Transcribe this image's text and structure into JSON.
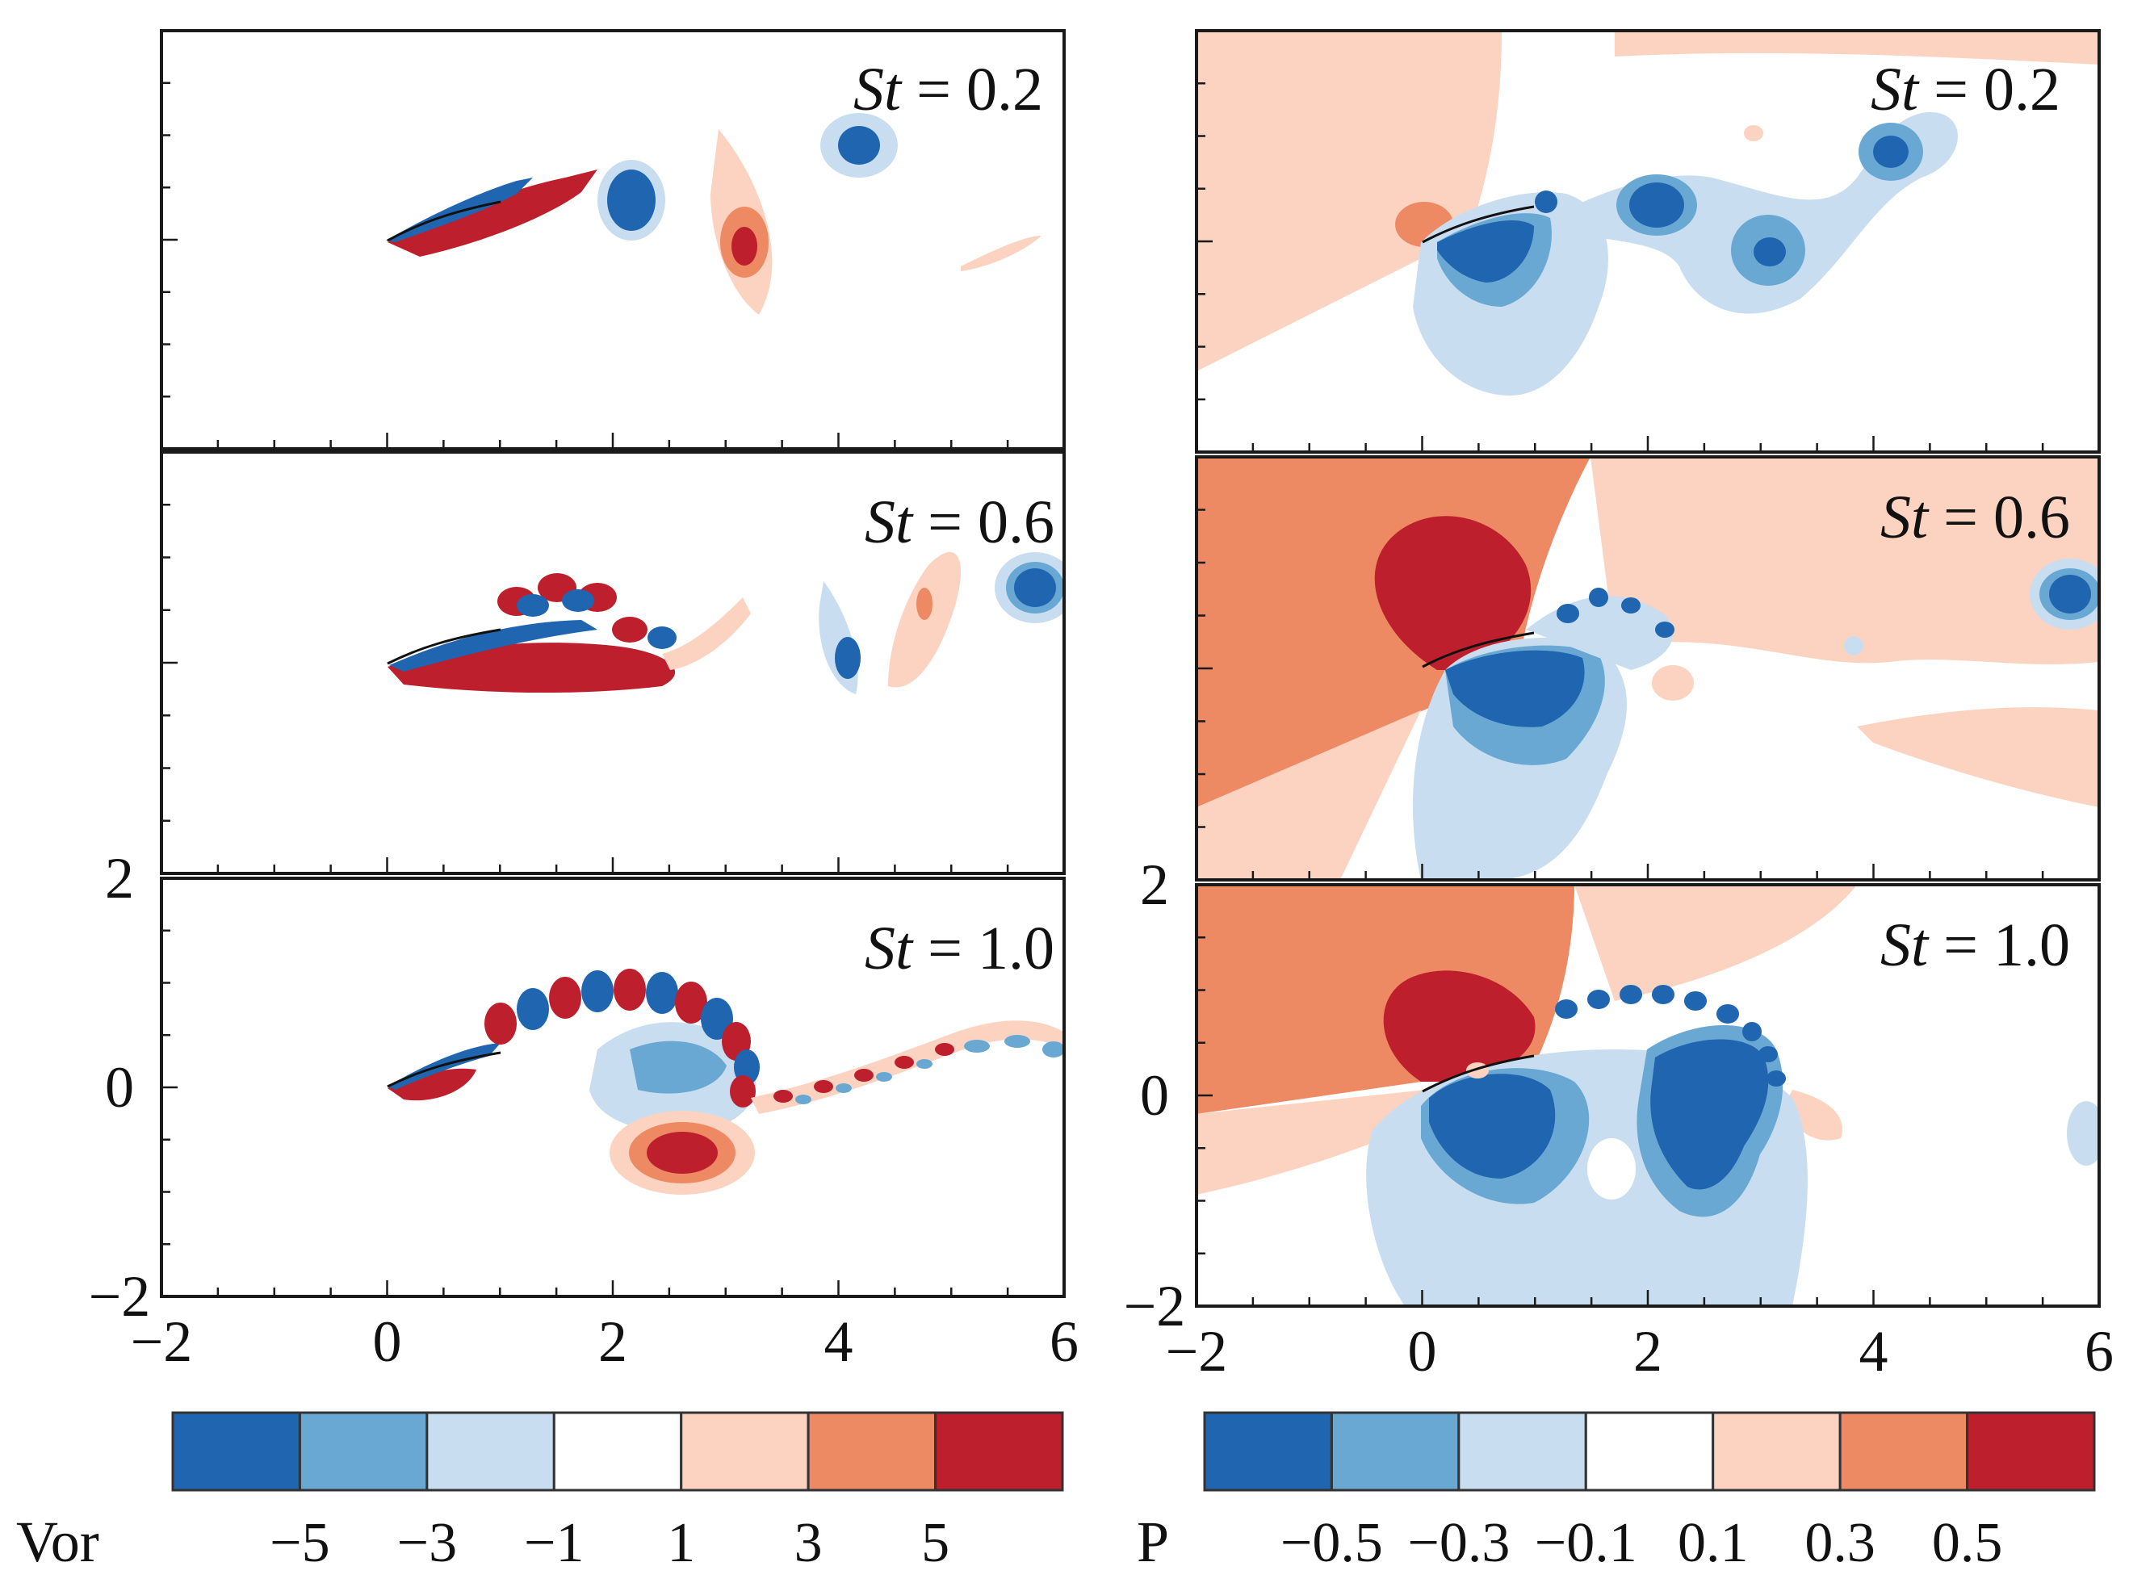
{
  "chart_data": [
    {
      "type": "heatmap",
      "field": "Vor",
      "colorbar_title": "Vor",
      "colorbar_levels": [
        "−5",
        "−3",
        "−1",
        "1",
        "3",
        "5"
      ],
      "colors": [
        "#1f65b0",
        "#6aa8d4",
        "#c8def0",
        "#ffffff",
        "#fbd3c0",
        "#ee8a63",
        "#bd1f2c"
      ],
      "xlim": [
        -2,
        6
      ],
      "ylim": [
        -2,
        2
      ],
      "xticks": [
        "−2",
        "0",
        "2",
        "4",
        "6"
      ],
      "yticks": [
        "−2",
        "0",
        "2"
      ],
      "panels": [
        {
          "St": "0.2",
          "label": "St = 0.2"
        },
        {
          "St": "0.6",
          "label": "St = 0.6"
        },
        {
          "St": "1.0",
          "label": "St = 1.0"
        }
      ]
    },
    {
      "type": "heatmap",
      "field": "P",
      "colorbar_title": "P",
      "colorbar_levels": [
        "−0.5",
        "−0.3",
        "−0.1",
        "0.1",
        "0.3",
        "0.5"
      ],
      "colors": [
        "#1f65b0",
        "#6aa8d4",
        "#c8def0",
        "#ffffff",
        "#fbd3c0",
        "#ee8a63",
        "#bd1f2c"
      ],
      "xlim": [
        -2,
        6
      ],
      "ylim": [
        -2,
        2
      ],
      "xticks": [
        "−2",
        "0",
        "2",
        "4",
        "6"
      ],
      "yticks": [
        "−2",
        "0",
        "2"
      ],
      "panels": [
        {
          "St": "0.2",
          "label": "St = 0.2"
        },
        {
          "St": "0.6",
          "label": "St = 0.6"
        },
        {
          "St": "1.0",
          "label": "St = 1.0"
        }
      ]
    }
  ]
}
